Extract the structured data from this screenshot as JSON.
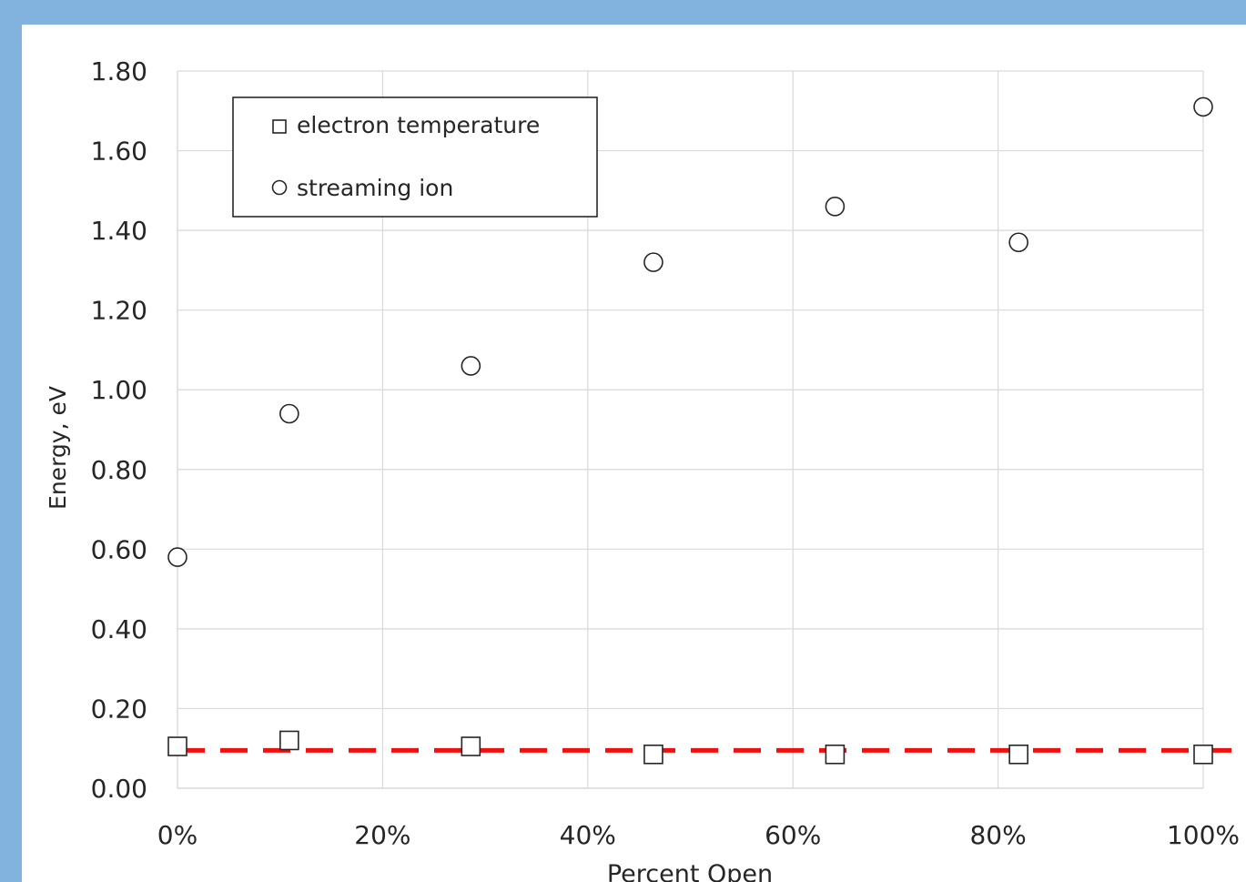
{
  "chart_data": {
    "type": "scatter",
    "xlabel": "Percent Open",
    "ylabel": "Energy, eV",
    "xlim": [
      0,
      1
    ],
    "ylim": [
      0,
      1.8
    ],
    "x_ticks": [
      0,
      0.2,
      0.4,
      0.6,
      0.8,
      1.0
    ],
    "x_tick_labels": [
      "0%",
      "20%",
      "40%",
      "60%",
      "80%",
      "100%"
    ],
    "y_ticks": [
      0,
      0.2,
      0.4,
      0.6,
      0.8,
      1.0,
      1.2,
      1.4,
      1.6,
      1.8
    ],
    "y_tick_labels": [
      "0.00",
      "0.20",
      "0.40",
      "0.60",
      "0.80",
      "1.00",
      "1.20",
      "1.40",
      "1.60",
      "1.80"
    ],
    "grid": true,
    "legend": "top-left",
    "series": [
      {
        "name": "electron temperature",
        "marker": "square",
        "x": [
          0.0,
          0.109,
          0.286,
          0.464,
          0.641,
          0.82,
          1.0
        ],
        "y": [
          0.105,
          0.12,
          0.105,
          0.085,
          0.085,
          0.085,
          0.085
        ]
      },
      {
        "name": "streaming ion",
        "marker": "circle",
        "x": [
          0.0,
          0.109,
          0.286,
          0.464,
          0.641,
          0.82,
          1.0
        ],
        "y": [
          0.58,
          0.94,
          1.06,
          1.32,
          1.46,
          1.37,
          1.71
        ]
      }
    ],
    "reference_line": {
      "y": 0.095,
      "style": "dashed",
      "color": "#ee1111"
    }
  }
}
